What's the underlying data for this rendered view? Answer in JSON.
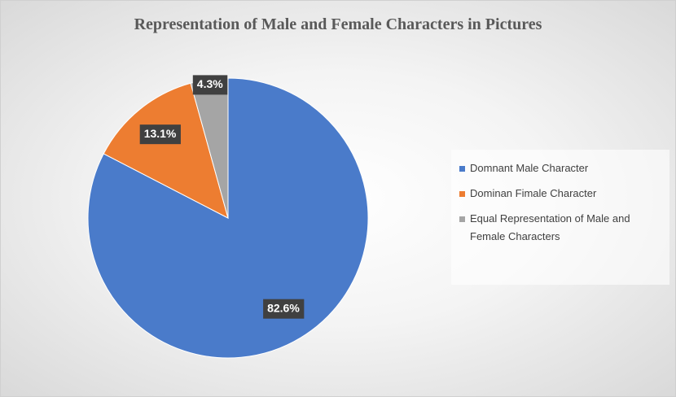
{
  "chart_data": {
    "type": "pie",
    "title": "Representation of Male and Female Characters in Pictures",
    "categories": [
      "Domnant Male Character",
      "Dominan Fimale Character",
      "Equal Representation of Male and Female Characters"
    ],
    "values": [
      82.6,
      13.1,
      4.3
    ],
    "value_labels": [
      "82.6%",
      "13.1%",
      "4.3%"
    ],
    "colors": [
      "#4a7bca",
      "#ed7d31",
      "#a5a5a5"
    ],
    "legend": "right"
  }
}
